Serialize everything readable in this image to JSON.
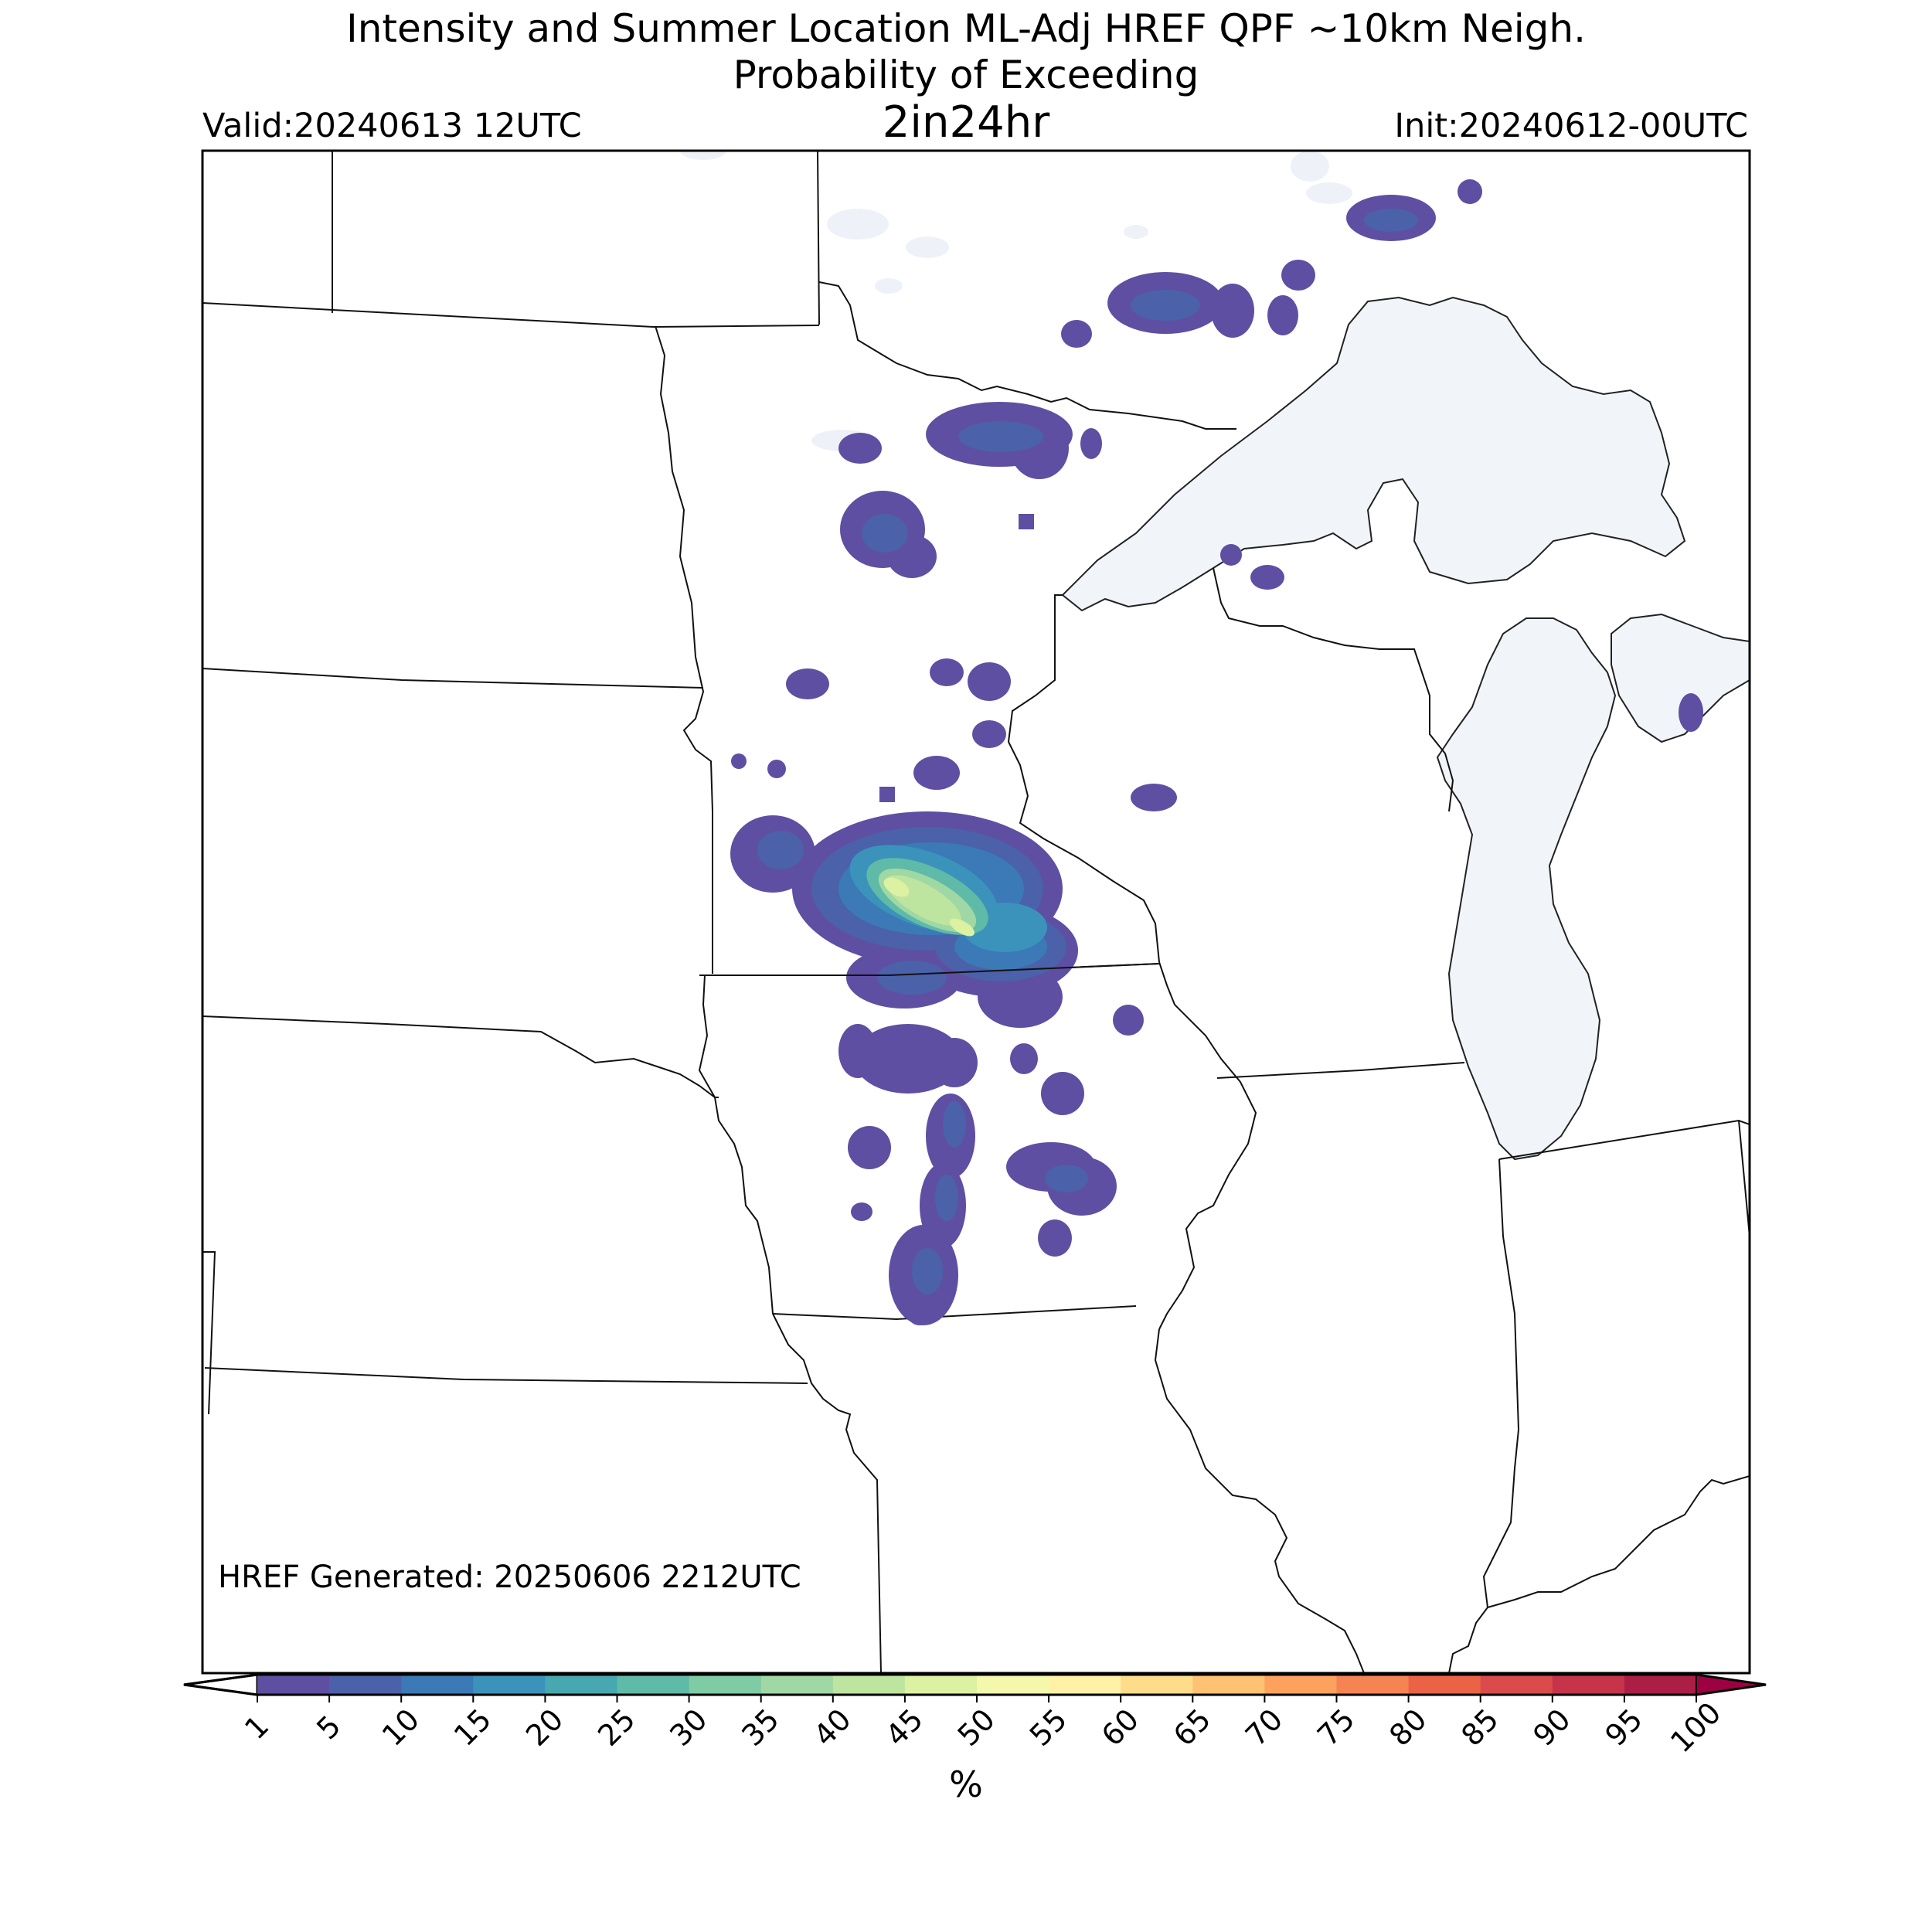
{
  "header": {
    "title_line1": "Intensity and Summer Location ML-Adj HREF QPF ~10km Neigh.",
    "title_line2": "Probability of Exceeding",
    "title_line3": "2in24hr",
    "valid": "Valid:20240613 12UTC",
    "init": "Init:20240612-00UTC"
  },
  "footer": {
    "generated": "HREF Generated: 20250606 2212UTC"
  },
  "colorbar": {
    "unit": "%",
    "ticks": [
      "1",
      "5",
      "10",
      "15",
      "20",
      "25",
      "30",
      "35",
      "40",
      "45",
      "50",
      "55",
      "60",
      "65",
      "70",
      "75",
      "80",
      "85",
      "90",
      "95",
      "100"
    ],
    "colors": [
      "#5e4fa2",
      "#4b61aa",
      "#3b7ab6",
      "#3b93bb",
      "#47a8b0",
      "#5fbaa7",
      "#7ecba4",
      "#9fd8a4",
      "#bee5a0",
      "#dcf1a1",
      "#f3f8ad",
      "#fff1a6",
      "#fedc8a",
      "#fdc273",
      "#fca25e",
      "#f68353",
      "#eb6347",
      "#db4b4b",
      "#c7344a",
      "#ad1e47"
    ],
    "under_color": "#ffffff",
    "over_color": "#9e0142"
  },
  "colors": {
    "lake_fill": "#f1f5fa",
    "border": "#000000"
  }
}
